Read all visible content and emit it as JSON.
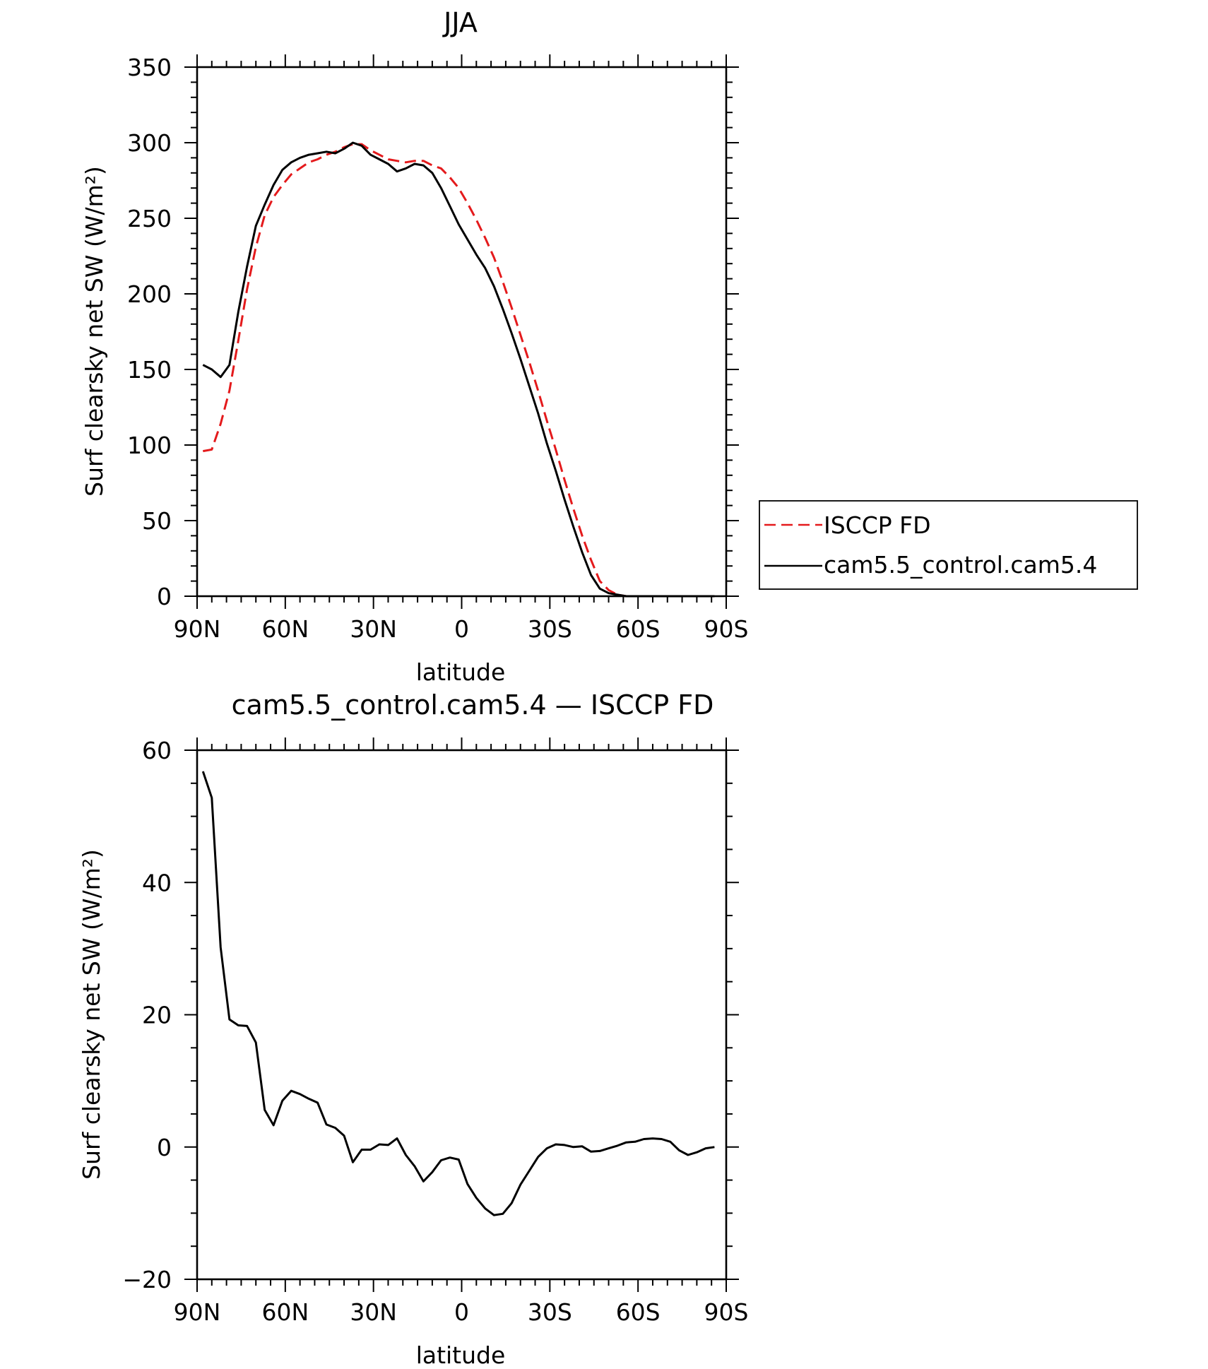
{
  "chart_data": [
    {
      "type": "line",
      "title": "JJA",
      "xlabel": "latitude",
      "ylabel": "Surf clearsky net SW (W/m²)",
      "xlim": [
        90,
        -90
      ],
      "ylim": [
        0,
        350
      ],
      "x_ticks": [
        {
          "value": 90,
          "label": "90N"
        },
        {
          "value": 60,
          "label": "60N"
        },
        {
          "value": 30,
          "label": "30N"
        },
        {
          "value": 0,
          "label": "0"
        },
        {
          "value": -30,
          "label": "30S"
        },
        {
          "value": -60,
          "label": "60S"
        },
        {
          "value": -90,
          "label": "90S"
        }
      ],
      "y_ticks": [
        0,
        50,
        100,
        150,
        200,
        250,
        300,
        350
      ],
      "y_tick_labels": [
        "0",
        "50",
        "100",
        "150",
        "200",
        "250",
        "300",
        "350"
      ],
      "grid": false,
      "legend": {
        "placement": "right-outside"
      },
      "series": [
        {
          "name": "ISCCP FD",
          "color": "#e41a1c",
          "dash": "dashed",
          "x": [
            88,
            85,
            82,
            79,
            76,
            73,
            70,
            67,
            64,
            61,
            58,
            55,
            52,
            49,
            46,
            43,
            40,
            37,
            34,
            31,
            28,
            25,
            22,
            19,
            16,
            13,
            10,
            7,
            4,
            1,
            -2,
            -5,
            -8,
            -11,
            -14,
            -17,
            -20,
            -23,
            -26,
            -29,
            -32,
            -35,
            -38,
            -41,
            -44,
            -47,
            -50,
            -53,
            -56,
            -59,
            -62,
            -65,
            -68,
            -71,
            -74,
            -77,
            -80,
            -83,
            -86
          ],
          "y": [
            96,
            97,
            114,
            136,
            169,
            203,
            231,
            252,
            264,
            272,
            279,
            283,
            287,
            289,
            292,
            294,
            297,
            299,
            299,
            295,
            292,
            289,
            288,
            287,
            288,
            288,
            285,
            283,
            277,
            270,
            260,
            249,
            237,
            224,
            208,
            191,
            173,
            155,
            136,
            116,
            97,
            77,
            58,
            40,
            24,
            10,
            4,
            1,
            0,
            0,
            0,
            0,
            0,
            0,
            0,
            0,
            0,
            0,
            0
          ]
        },
        {
          "name": "cam5.5_control.cam5.4",
          "color": "#000000",
          "dash": "solid",
          "x": [
            88,
            85,
            82,
            79,
            76,
            73,
            70,
            67,
            64,
            61,
            58,
            55,
            52,
            49,
            46,
            43,
            40,
            37,
            34,
            31,
            28,
            25,
            22,
            19,
            16,
            13,
            10,
            7,
            4,
            1,
            -2,
            -5,
            -8,
            -11,
            -14,
            -17,
            -20,
            -23,
            -26,
            -29,
            -32,
            -35,
            -38,
            -41,
            -44,
            -47,
            -50,
            -53,
            -56,
            -59,
            -62,
            -65,
            -68,
            -71,
            -74,
            -77,
            -80,
            -83,
            -86
          ],
          "y": [
            153,
            150,
            145,
            153,
            188,
            218,
            245,
            259,
            272,
            282,
            287,
            290,
            292,
            293,
            294,
            293,
            296,
            300,
            298,
            292,
            289,
            286,
            281,
            283,
            286,
            285,
            280,
            270,
            258,
            246,
            236,
            226,
            217,
            205,
            190,
            174,
            157,
            139,
            121,
            101,
            83,
            64,
            46,
            29,
            14,
            5,
            2,
            1,
            0,
            0,
            0,
            0,
            0,
            0,
            0,
            0,
            0,
            0,
            0
          ]
        }
      ]
    },
    {
      "type": "line",
      "title": "cam5.5_control.cam5.4 — ISCCP FD",
      "xlabel": "latitude",
      "ylabel": "Surf clearsky net SW (W/m²)",
      "xlim": [
        90,
        -90
      ],
      "ylim": [
        -20,
        60
      ],
      "x_ticks": [
        {
          "value": 90,
          "label": "90N"
        },
        {
          "value": 60,
          "label": "60N"
        },
        {
          "value": 30,
          "label": "30N"
        },
        {
          "value": 0,
          "label": "0"
        },
        {
          "value": -30,
          "label": "30S"
        },
        {
          "value": -60,
          "label": "60S"
        },
        {
          "value": -90,
          "label": "90S"
        }
      ],
      "y_ticks": [
        -20,
        0,
        20,
        40,
        60
      ],
      "y_tick_labels": [
        "−20",
        "0",
        "20",
        "40",
        "60"
      ],
      "grid": false,
      "series": [
        {
          "color": "#000000",
          "dash": "solid",
          "x": [
            88,
            85,
            82,
            79,
            76,
            73,
            70,
            67,
            64,
            61,
            58,
            55,
            52,
            49,
            46,
            43,
            40,
            37,
            34,
            31,
            28,
            25,
            22,
            19,
            16,
            13,
            10,
            7,
            4,
            1,
            -2,
            -5,
            -8,
            -11,
            -14,
            -17,
            -20,
            -23,
            -26,
            -29,
            -32,
            -35,
            -38,
            -41,
            -44,
            -47,
            -50,
            -53,
            -56,
            -59,
            -62,
            -65,
            -68,
            -71,
            -74,
            -77,
            -80,
            -83,
            -86
          ],
          "y": [
            56.8,
            52.8,
            30.2,
            19.3,
            18.4,
            18.3,
            15.8,
            5.6,
            3.3,
            7,
            8.5,
            8,
            7.3,
            6.7,
            3.4,
            2.9,
            1.7,
            -2.3,
            -0.4,
            -0.4,
            0.4,
            0.3,
            1.3,
            -1.2,
            -2.9,
            -5.2,
            -3.8,
            -2,
            -1.6,
            -1.9,
            -5.6,
            -7.7,
            -9.3,
            -10.3,
            -10.1,
            -8.5,
            -5.7,
            -3.6,
            -1.5,
            -0.2,
            0.4,
            0.3,
            0,
            0.1,
            -0.7,
            -0.6,
            -0.2,
            0.2,
            0.7,
            0.8,
            1.2,
            1.3,
            1.2,
            0.8,
            -0.5,
            -1.2,
            -0.8,
            -0.2,
            0
          ]
        }
      ]
    }
  ]
}
